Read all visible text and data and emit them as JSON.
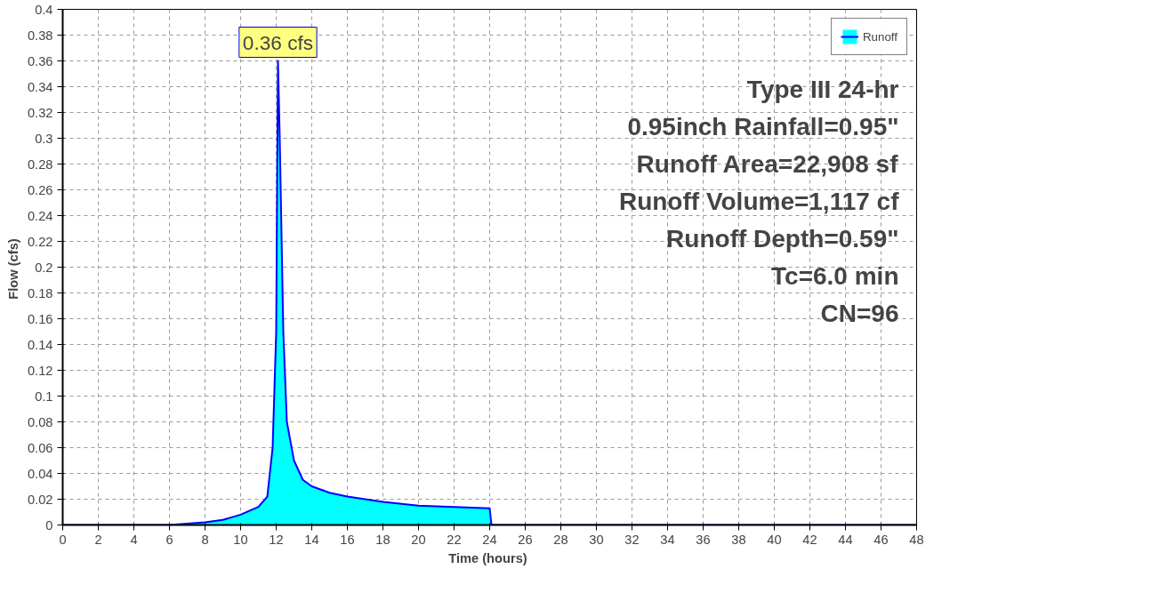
{
  "chart_data": {
    "type": "area",
    "xlabel": "Time  (hours)",
    "ylabel": "Flow  (cfs)",
    "x": [
      0,
      6,
      7,
      8,
      9,
      10,
      11,
      11.5,
      11.8,
      12.0,
      12.1,
      12.2,
      12.4,
      12.6,
      13,
      13.5,
      14,
      15,
      16,
      18,
      20,
      22,
      24,
      24.1,
      48
    ],
    "series": [
      {
        "name": "Runoff",
        "color": "#00ffff",
        "values": [
          0,
          0,
          0.001,
          0.002,
          0.004,
          0.008,
          0.014,
          0.022,
          0.06,
          0.15,
          0.36,
          0.3,
          0.15,
          0.08,
          0.05,
          0.035,
          0.03,
          0.025,
          0.022,
          0.018,
          0.015,
          0.014,
          0.013,
          0,
          0
        ]
      }
    ],
    "xlim": [
      0,
      48
    ],
    "xticks": [
      0,
      2,
      4,
      6,
      8,
      10,
      12,
      14,
      16,
      18,
      20,
      22,
      24,
      26,
      28,
      30,
      32,
      34,
      36,
      38,
      40,
      42,
      44,
      46,
      48
    ],
    "ylim": [
      0,
      0.4
    ],
    "yticks": [
      0,
      0.02,
      0.04,
      0.06,
      0.08,
      0.1,
      0.12,
      0.14,
      0.16,
      0.18,
      0.2,
      0.22,
      0.24,
      0.26,
      0.28,
      0.3,
      0.32,
      0.34,
      0.36,
      0.38,
      0.4
    ],
    "annotations": [
      {
        "text": "0.36 cfs",
        "x": 12.1,
        "y": 0.36
      },
      "Type III 24-hr",
      "0.95inch Rainfall=0.95\"",
      "Runoff Area=22,908 sf",
      "Runoff Volume=1,117 cf",
      "Runoff Depth=0.59\"",
      "Tc=6.0 min",
      "CN=96"
    ],
    "grid": true,
    "legend": "top right"
  }
}
